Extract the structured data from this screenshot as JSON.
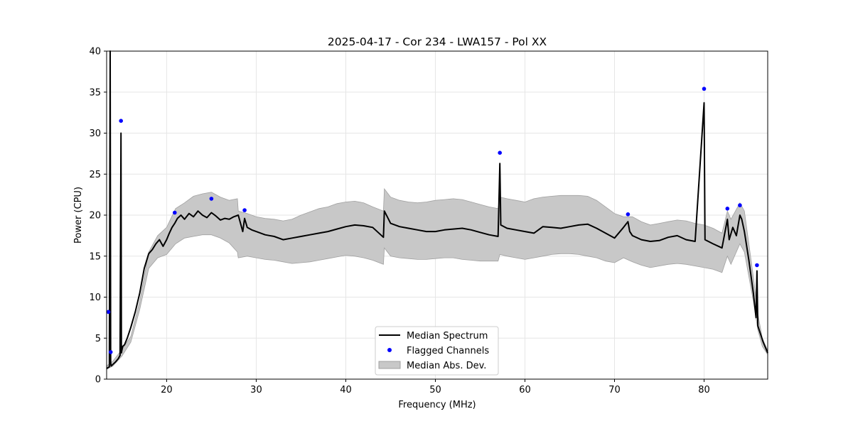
{
  "chart_data": {
    "type": "line",
    "title": "2025-04-17 - Cor 234 - LWA157 - Pol XX",
    "xlabel": "Frequency (MHz)",
    "ylabel": "Power (CPU)",
    "xlim": [
      13.3,
      87.1
    ],
    "ylim": [
      0,
      40
    ],
    "xticks": [
      20,
      30,
      40,
      50,
      60,
      70,
      80
    ],
    "yticks": [
      0,
      5,
      10,
      15,
      20,
      25,
      30,
      35,
      40
    ],
    "grid": true,
    "legend_position": "lower-center",
    "colors": {
      "median": "#000000",
      "flagged": "#0000ff",
      "mad_fill": "#c8c8c8",
      "mad_edge": "#a0a0a0",
      "grid": "#e6e6e6"
    },
    "legend": [
      {
        "label": "Median Spectrum",
        "kind": "line"
      },
      {
        "label": "Flagged Channels",
        "kind": "marker"
      },
      {
        "label": "Median Abs. Dev.",
        "kind": "patch"
      }
    ],
    "series": [
      {
        "name": "Median Spectrum",
        "x": [
          13.3,
          13.6,
          13.7,
          13.75,
          13.8,
          13.9,
          14.0,
          14.3,
          14.6,
          14.8,
          14.9,
          14.95,
          15.0,
          15.1,
          15.3,
          15.6,
          16.0,
          16.5,
          17.0,
          17.5,
          18.0,
          18.4,
          18.8,
          19.2,
          19.6,
          20.0,
          20.3,
          20.6,
          20.9,
          21.2,
          21.6,
          22.0,
          22.5,
          23.0,
          23.5,
          24.0,
          24.5,
          25.0,
          25.5,
          26.0,
          26.5,
          27.0,
          27.5,
          28.0,
          28.5,
          28.7,
          29.0,
          29.5,
          30.0,
          31.0,
          32.0,
          33.0,
          34.0,
          35.0,
          36.0,
          37.0,
          38.0,
          39.0,
          40.0,
          41.0,
          42.0,
          43.0,
          44.2,
          44.3,
          45.0,
          46.0,
          47.0,
          48.0,
          49.0,
          50.0,
          51.0,
          52.0,
          53.0,
          54.0,
          55.0,
          56.0,
          57.0,
          57.2,
          57.3,
          58.0,
          59.0,
          60.0,
          61.0,
          62.0,
          63.0,
          64.0,
          65.0,
          66.0,
          67.0,
          68.0,
          69.0,
          70.0,
          71.0,
          71.5,
          71.7,
          72.0,
          73.0,
          74.0,
          75.0,
          76.0,
          77.0,
          78.0,
          79.0,
          80.0,
          80.1,
          81.0,
          82.0,
          82.6,
          82.8,
          83.2,
          83.6,
          84.0,
          84.2,
          84.5,
          85.0,
          85.5,
          85.8,
          85.9,
          86.0,
          86.3,
          86.6,
          87.1
        ],
        "values": [
          1.3,
          1.5,
          40,
          2.0,
          1.6,
          1.7,
          1.8,
          2.1,
          2.5,
          2.9,
          30,
          3.2,
          3.5,
          4.0,
          4.2,
          5.0,
          6.3,
          8.2,
          10.5,
          13.5,
          15.3,
          15.8,
          16.5,
          17.0,
          16.2,
          17.0,
          17.8,
          18.5,
          19.0,
          19.6,
          20.0,
          19.5,
          20.2,
          19.8,
          20.5,
          20.0,
          19.7,
          20.3,
          19.9,
          19.4,
          19.6,
          19.5,
          19.8,
          20.0,
          18.0,
          19.6,
          18.5,
          18.2,
          18.0,
          17.6,
          17.4,
          17.0,
          17.2,
          17.4,
          17.6,
          17.8,
          18.0,
          18.3,
          18.6,
          18.8,
          18.7,
          18.5,
          17.3,
          20.5,
          19.0,
          18.6,
          18.4,
          18.2,
          18.0,
          18.0,
          18.2,
          18.3,
          18.4,
          18.2,
          17.9,
          17.6,
          17.4,
          26.3,
          18.8,
          18.4,
          18.2,
          18.0,
          17.8,
          18.6,
          18.5,
          18.4,
          18.6,
          18.8,
          18.9,
          18.4,
          17.8,
          17.2,
          18.5,
          19.2,
          18.0,
          17.5,
          17.0,
          16.8,
          16.9,
          17.3,
          17.5,
          17.0,
          16.8,
          33.7,
          17.0,
          16.5,
          16.0,
          19.5,
          17.0,
          18.5,
          17.5,
          20.0,
          19.5,
          18.0,
          14.5,
          10.5,
          7.5,
          13.2,
          6.5,
          5.5,
          4.5,
          3.2
        ]
      },
      {
        "name": "Median Abs. Dev.",
        "x": [
          13.3,
          14.0,
          15.0,
          16.0,
          17.0,
          18.0,
          19.0,
          20.0,
          21.0,
          22.0,
          23.0,
          24.0,
          25.0,
          26.0,
          27.0,
          27.9,
          28.0,
          29.0,
          30.0,
          31.0,
          32.0,
          33.0,
          34.0,
          35.0,
          36.0,
          37.0,
          38.0,
          39.0,
          40.0,
          41.0,
          42.0,
          43.0,
          44.2,
          44.3,
          45.0,
          46.0,
          47.0,
          48.0,
          49.0,
          50.0,
          51.0,
          52.0,
          53.0,
          54.0,
          55.0,
          56.0,
          57.0,
          57.2,
          58.0,
          59.0,
          60.0,
          61.0,
          62.0,
          63.0,
          64.0,
          65.0,
          66.0,
          67.0,
          68.0,
          69.0,
          70.0,
          71.0,
          72.0,
          73.0,
          74.0,
          75.0,
          76.0,
          77.0,
          78.0,
          79.0,
          80.0,
          81.0,
          82.0,
          82.6,
          83.0,
          84.0,
          84.5,
          85.0,
          85.5,
          86.0,
          86.5,
          87.1
        ],
        "upper": [
          1.6,
          2.2,
          3.6,
          5.2,
          9.5,
          15.5,
          17.5,
          18.5,
          20.8,
          21.5,
          22.3,
          22.6,
          22.8,
          22.2,
          21.8,
          22.0,
          20.5,
          20.2,
          19.8,
          19.6,
          19.5,
          19.3,
          19.5,
          20.0,
          20.4,
          20.8,
          21.0,
          21.4,
          21.6,
          21.7,
          21.5,
          21.0,
          20.5,
          23.2,
          22.2,
          21.8,
          21.6,
          21.5,
          21.6,
          21.8,
          21.9,
          22.0,
          21.9,
          21.6,
          21.3,
          21.0,
          20.8,
          22.2,
          22.0,
          21.8,
          21.6,
          22.0,
          22.2,
          22.3,
          22.4,
          22.4,
          22.4,
          22.3,
          21.8,
          21.0,
          20.2,
          19.8,
          19.8,
          19.2,
          18.8,
          19.0,
          19.2,
          19.4,
          19.3,
          19.0,
          18.8,
          18.4,
          17.8,
          20.5,
          19.5,
          21.5,
          20.5,
          16.5,
          12.5,
          8.0,
          5.0,
          3.5
        ],
        "lower": [
          1.2,
          1.6,
          2.8,
          4.5,
          8.5,
          13.5,
          14.8,
          15.2,
          16.5,
          17.2,
          17.4,
          17.6,
          17.6,
          17.2,
          16.6,
          15.5,
          14.8,
          15.0,
          14.8,
          14.6,
          14.5,
          14.3,
          14.1,
          14.2,
          14.3,
          14.5,
          14.7,
          14.9,
          15.1,
          15.0,
          14.8,
          14.5,
          14.0,
          16.0,
          15.0,
          14.8,
          14.7,
          14.6,
          14.6,
          14.7,
          14.8,
          14.8,
          14.6,
          14.5,
          14.4,
          14.4,
          14.4,
          15.2,
          15.0,
          14.8,
          14.6,
          14.8,
          15.0,
          15.2,
          15.3,
          15.3,
          15.2,
          15.0,
          14.8,
          14.4,
          14.2,
          14.8,
          14.3,
          13.9,
          13.6,
          13.8,
          14.0,
          14.1,
          14.0,
          13.8,
          13.6,
          13.4,
          13.0,
          15.0,
          14.0,
          16.5,
          15.5,
          12.5,
          9.5,
          6.0,
          4.0,
          3.0
        ]
      },
      {
        "name": "Flagged Channels",
        "x": [
          13.5,
          13.75,
          14.9,
          20.9,
          25.0,
          28.7,
          57.2,
          71.5,
          80.0,
          82.6,
          84.0,
          85.9
        ],
        "values": [
          8.2,
          3.3,
          31.5,
          20.3,
          22.0,
          20.6,
          27.6,
          20.1,
          35.4,
          20.8,
          21.2,
          13.9
        ]
      }
    ]
  }
}
